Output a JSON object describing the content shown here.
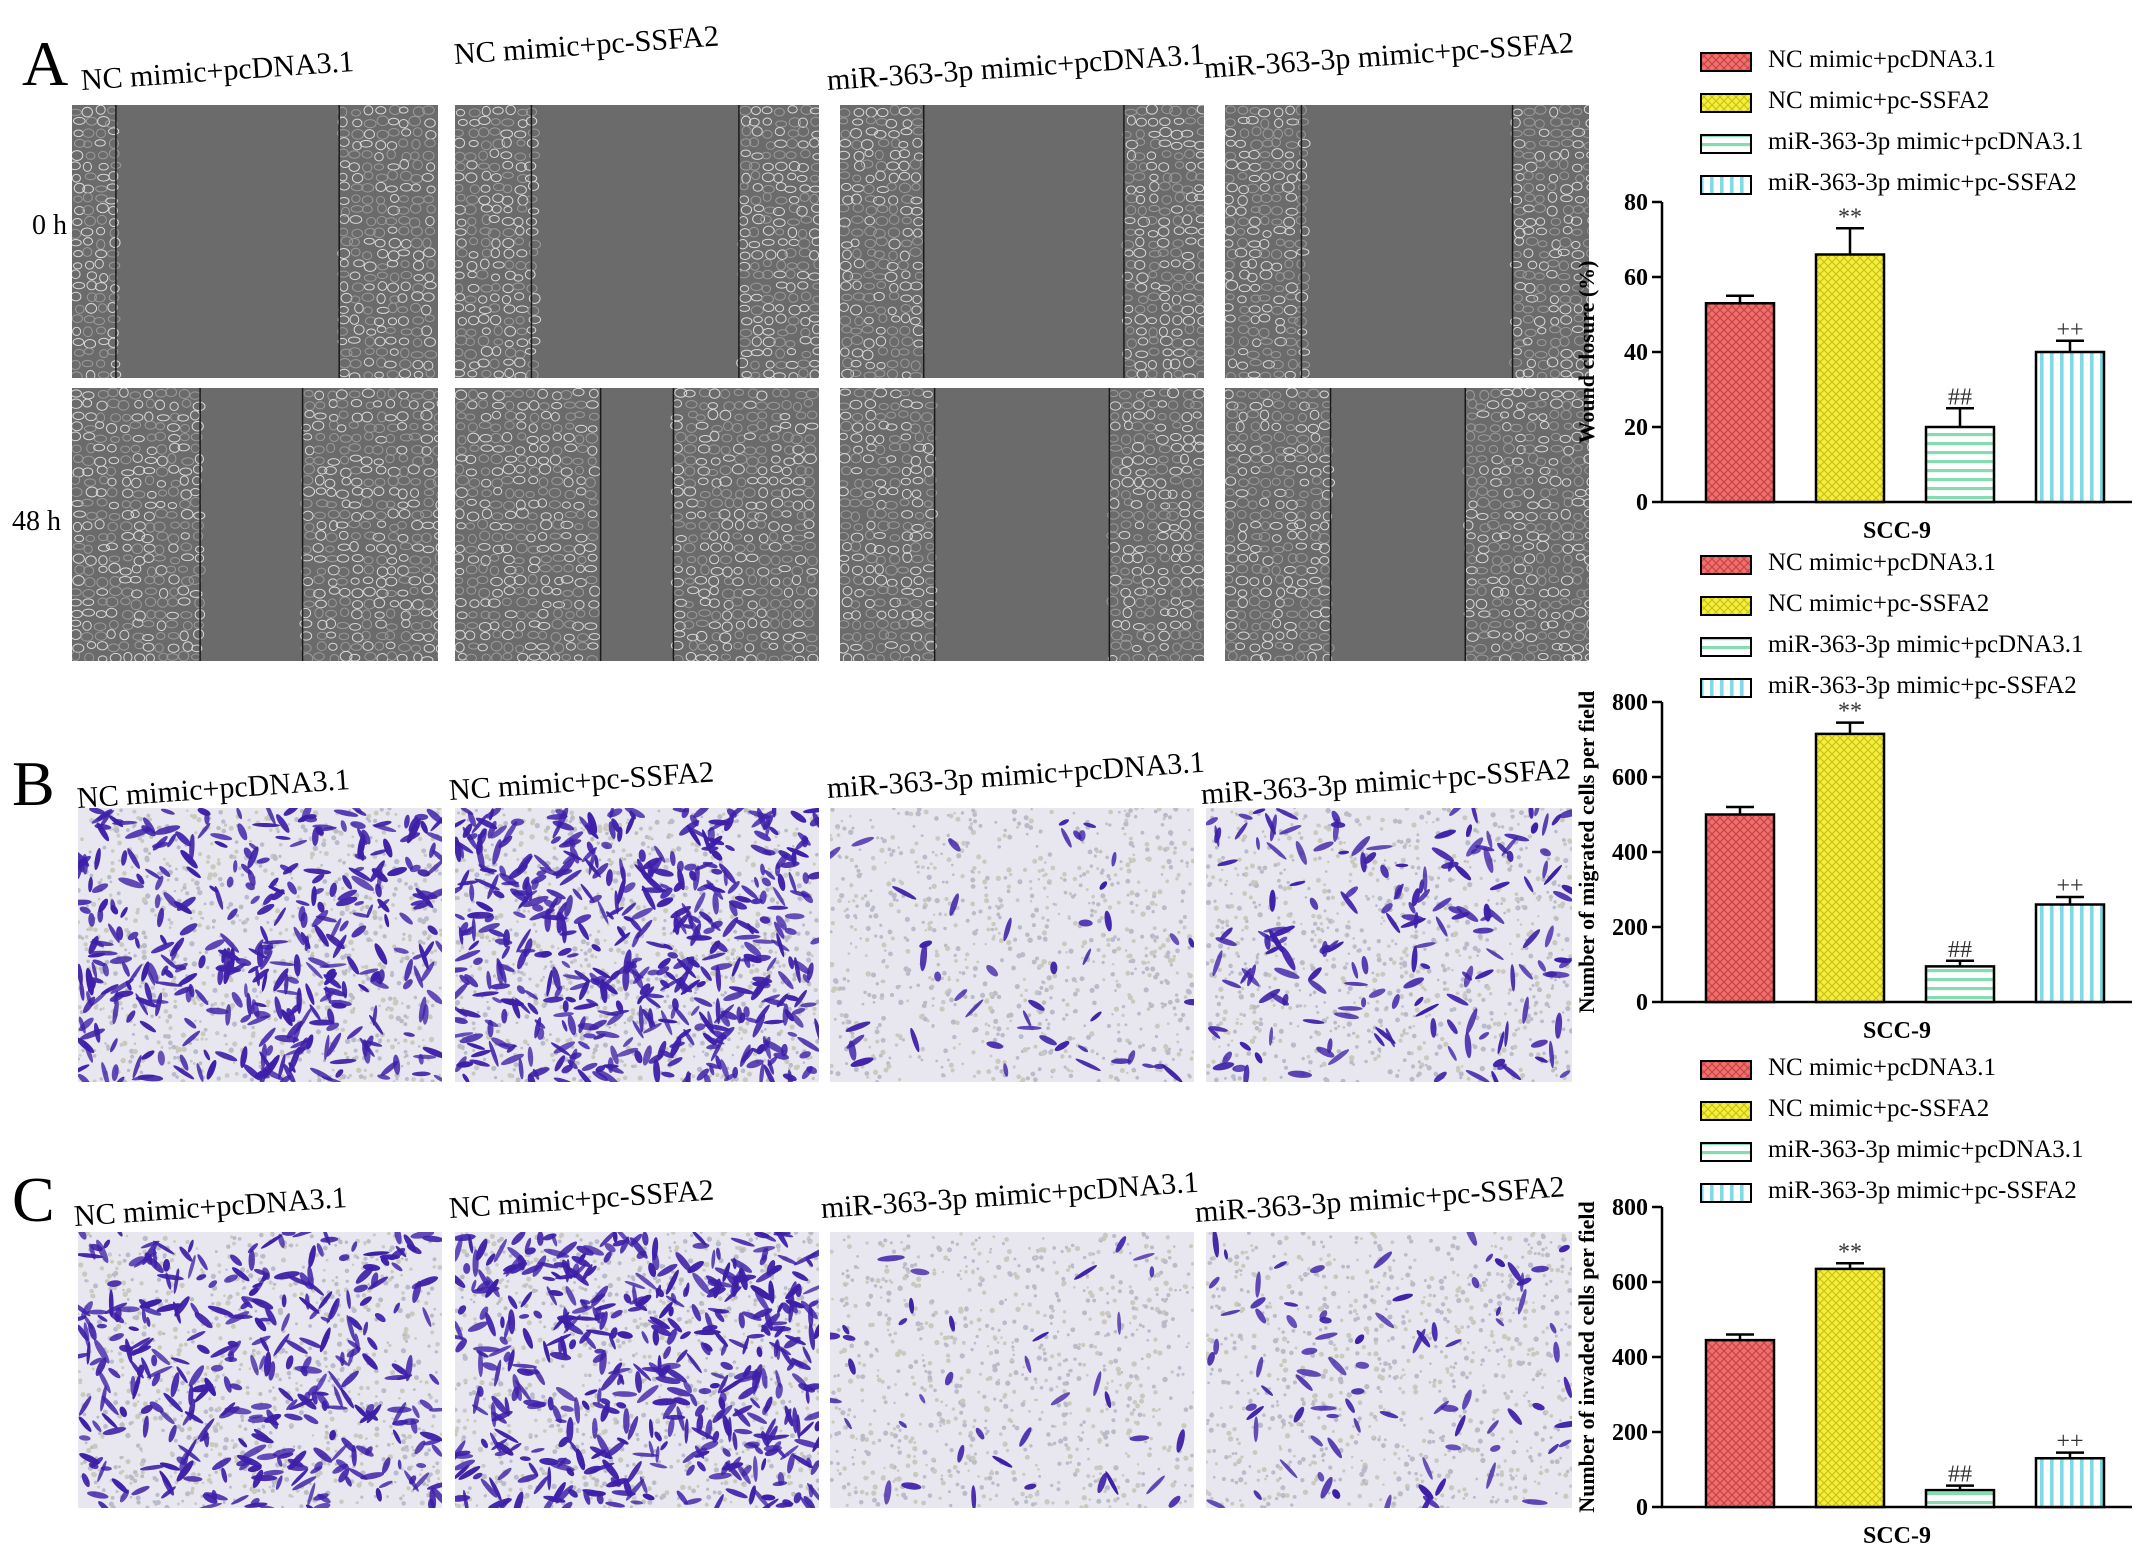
{
  "colors": {
    "nc_pcdna": "#f07070",
    "nc_ssfa2": "#f5ef3a",
    "mir_pcdna": "#b8f0d6",
    "mir_ssfa2": "#a8eaf2",
    "wound_bg": "#6b6b6b",
    "cell_bg": "#d5d5d0",
    "crystal_violet": "#3d1fa8",
    "stained_bg": "#e8e6ee"
  },
  "icons": {
    "legend_patterns": [
      "crosshatch-pattern-icon",
      "dotted-pattern-icon",
      "horizontal-lines-pattern-icon",
      "vertical-lines-pattern-icon"
    ]
  },
  "rows": {
    "A": {
      "letter": "A",
      "labels": [
        "NC mimic+pcDNA3.1",
        "NC mimic+pc-SSFA2",
        "miR-363-3p mimic+pcDNA3.1",
        "miR-363-3p mimic+pc-SSFA2"
      ],
      "times": [
        "0 h",
        "48 h"
      ]
    },
    "B": {
      "letter": "B",
      "labels": [
        "NC mimic+pcDNA3.1",
        "NC mimic+pc-SSFA2",
        "miR-363-3p mimic+pcDNA3.1",
        "miR-363-3p mimic+pc-SSFA2"
      ]
    },
    "C": {
      "letter": "C",
      "labels": [
        "NC mimic+pcDNA3.1",
        "NC mimic+pc-SSFA2",
        "miR-363-3p mimic+pcDNA3.1",
        "miR-363-3p mimic+pc-SSFA2"
      ]
    }
  },
  "chart_data": [
    {
      "type": "bar",
      "xlabel": "SCC-9",
      "ylabel": "Wound closure (%)",
      "ylim": [
        0,
        80
      ],
      "yticks": [
        0,
        20,
        40,
        60,
        80
      ],
      "series": [
        {
          "name": "NC mimic+pcDNA3.1",
          "value": 53,
          "error": 2,
          "annotation": ""
        },
        {
          "name": "NC mimic+pc-SSFA2",
          "value": 66,
          "error": 7,
          "annotation": "**"
        },
        {
          "name": "miR-363-3p mimic+pcDNA3.1",
          "value": 20,
          "error": 5,
          "annotation": "##"
        },
        {
          "name": "miR-363-3p mimic+pc-SSFA2",
          "value": 40,
          "error": 3,
          "annotation": "++"
        }
      ],
      "legend_position": "top"
    },
    {
      "type": "bar",
      "xlabel": "SCC-9",
      "ylabel": "Number of migrated cells per field",
      "ylim": [
        0,
        800
      ],
      "yticks": [
        0,
        200,
        400,
        600,
        800
      ],
      "series": [
        {
          "name": "NC mimic+pcDNA3.1",
          "value": 500,
          "error": 20,
          "annotation": ""
        },
        {
          "name": "NC mimic+pc-SSFA2",
          "value": 715,
          "error": 30,
          "annotation": "**"
        },
        {
          "name": "miR-363-3p mimic+pcDNA3.1",
          "value": 95,
          "error": 15,
          "annotation": "##"
        },
        {
          "name": "miR-363-3p mimic+pc-SSFA2",
          "value": 260,
          "error": 20,
          "annotation": "++"
        }
      ],
      "legend_position": "top"
    },
    {
      "type": "bar",
      "xlabel": "SCC-9",
      "ylabel": "Number of invaded cells per field",
      "ylim": [
        0,
        800
      ],
      "yticks": [
        0,
        200,
        400,
        600,
        800
      ],
      "series": [
        {
          "name": "NC mimic+pcDNA3.1",
          "value": 445,
          "error": 15,
          "annotation": ""
        },
        {
          "name": "NC mimic+pc-SSFA2",
          "value": 635,
          "error": 15,
          "annotation": "**"
        },
        {
          "name": "miR-363-3p mimic+pcDNA3.1",
          "value": 45,
          "error": 12,
          "annotation": "##"
        },
        {
          "name": "miR-363-3p mimic+pc-SSFA2",
          "value": 130,
          "error": 15,
          "annotation": "++"
        }
      ],
      "legend_position": "top"
    }
  ]
}
